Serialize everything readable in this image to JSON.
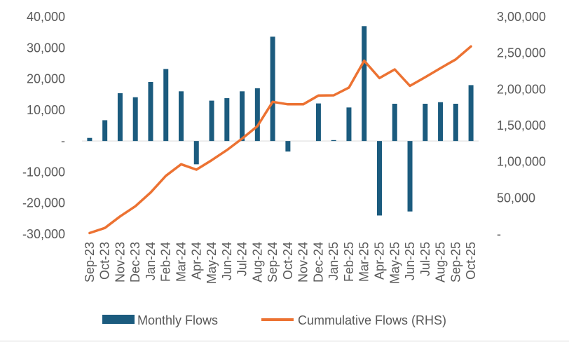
{
  "chart_data": {
    "type": "bar+line",
    "categories": [
      "Sep-23",
      "Oct-23",
      "Nov-23",
      "Dec-23",
      "Jan-24",
      "Feb-24",
      "Mar-24",
      "Apr-24",
      "May-24",
      "Jun-24",
      "Jul-24",
      "Aug-24",
      "Sep-24",
      "Oct-24",
      "Nov-24",
      "Dec-24",
      "Jan-25",
      "Feb-25",
      "Mar-25",
      "Apr-25",
      "May-25",
      "Jun-25",
      "Jul-25",
      "Aug-25",
      "Sep-25",
      "Oct-25"
    ],
    "left_axis": {
      "ylim": [
        -30000,
        40000
      ],
      "ticks": [
        40000,
        30000,
        20000,
        10000,
        0,
        -10000,
        -20000,
        -30000
      ],
      "tick_labels": [
        "40,000",
        "30,000",
        "20,000",
        "10,000",
        "-",
        "-10,000",
        "-20,000",
        "-30,000"
      ]
    },
    "right_axis": {
      "ylim": [
        0,
        300000
      ],
      "ticks": [
        300000,
        250000,
        200000,
        150000,
        100000,
        50000,
        0
      ],
      "tick_labels": [
        "3,00,000",
        "2,50,000",
        "2,00,000",
        "1,50,000",
        "1,00,000",
        "50,000",
        "-"
      ]
    },
    "series": [
      {
        "name": "Monthly Flows",
        "type": "bar",
        "axis": "left",
        "color": "#1b5b7e",
        "values": [
          1000,
          6700,
          15400,
          14100,
          19000,
          23200,
          16000,
          -7500,
          13000,
          13800,
          16000,
          17000,
          33600,
          -3400,
          0,
          12100,
          300,
          10800,
          37000,
          -24000,
          12000,
          -22700,
          12000,
          12500,
          12000,
          18000
        ]
      },
      {
        "name": "Cummulative Flows (RHS)",
        "type": "line",
        "axis": "right",
        "color": "#ec7232",
        "values": [
          1500,
          8500,
          24500,
          38500,
          57500,
          80500,
          96500,
          89000,
          102000,
          116000,
          132000,
          149000,
          182600,
          179200,
          179200,
          191300,
          191600,
          202400,
          239400,
          215400,
          227400,
          204700,
          216700,
          229200,
          241200,
          259200
        ]
      }
    ],
    "legend": {
      "placement": "bottom",
      "entries": [
        "Monthly Flows",
        "Cummulative Flows (RHS)"
      ]
    },
    "grid": false
  }
}
